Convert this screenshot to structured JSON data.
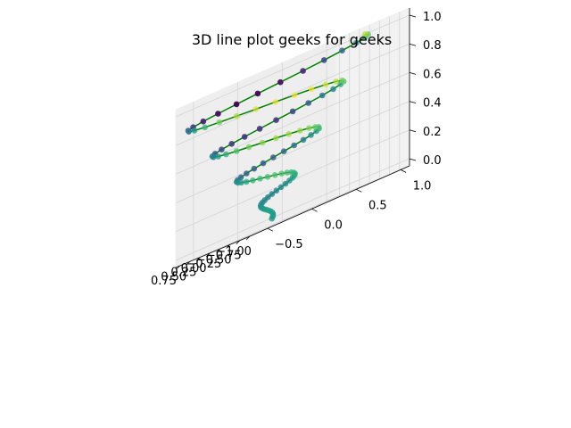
{
  "chart_data": {
    "type": "line3d",
    "title": "3D line plot geeks for geeks",
    "line_color": "#008000",
    "colormap": "viridis",
    "point_colors": [
      "#440154",
      "#482878",
      "#3e4989",
      "#31688e",
      "#26828e",
      "#1f9e89",
      "#35b779",
      "#6ece58",
      "#b5de2b",
      "#fde725"
    ],
    "pane_color": "#f2f2f2",
    "grid": true,
    "curve": {
      "t_start": 0,
      "t_end": 1,
      "num_points": 100,
      "x": "sin(25 t) * t",
      "y": "cos(25 t) * t",
      "z": "t",
      "color_value": "x + y"
    },
    "axes": {
      "x": {
        "ticks": [
          -1.0,
          -0.75,
          -0.5,
          -0.25,
          0.0,
          0.25,
          0.5,
          0.75
        ],
        "tick_labels": [
          "−1.00",
          "−0.75",
          "−0.50",
          "−0.25",
          "0.00",
          "0.25",
          "0.50",
          "0.75"
        ]
      },
      "y": {
        "ticks": [
          -0.5,
          0.0,
          0.5,
          1.0
        ],
        "tick_labels": [
          "−0.5",
          "0.0",
          "0.5",
          "1.0"
        ]
      },
      "z": {
        "ticks": [
          0.0,
          0.2,
          0.4,
          0.6,
          0.8,
          1.0
        ],
        "tick_labels": [
          "0.0",
          "0.2",
          "0.4",
          "0.6",
          "0.8",
          "1.0"
        ]
      }
    }
  }
}
